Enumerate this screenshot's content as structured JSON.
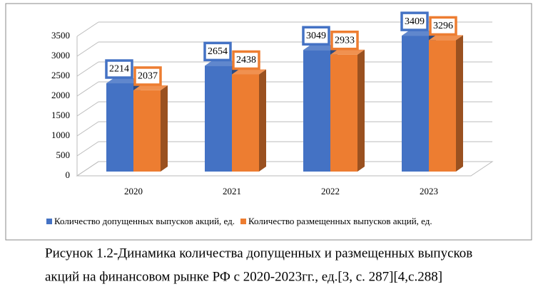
{
  "chart_data": {
    "type": "bar3d",
    "categories": [
      "2020",
      "2021",
      "2022",
      "2023"
    ],
    "series": [
      {
        "name": "Количество допущенных выпусков акций, ед.",
        "color": "#4472c4",
        "values": [
          2214,
          2654,
          3049,
          3409
        ]
      },
      {
        "name": "Количество размещенных выпусков акций, ед.",
        "color": "#ed7d31",
        "values": [
          2037,
          2438,
          2933,
          3296
        ]
      }
    ],
    "ylim": [
      0,
      3500
    ],
    "yticks": [
      0,
      500,
      1000,
      1500,
      2000,
      2500,
      3000,
      3500
    ],
    "grid": true,
    "legend": "bottom",
    "caption": [
      "Рисунок 1.2-Динамика количества допущенных и размещенных выпусков",
      "акций на финансовом рынке РФ с 2020-2023гг., ед.[3, с. 287][4,с.288]"
    ]
  }
}
